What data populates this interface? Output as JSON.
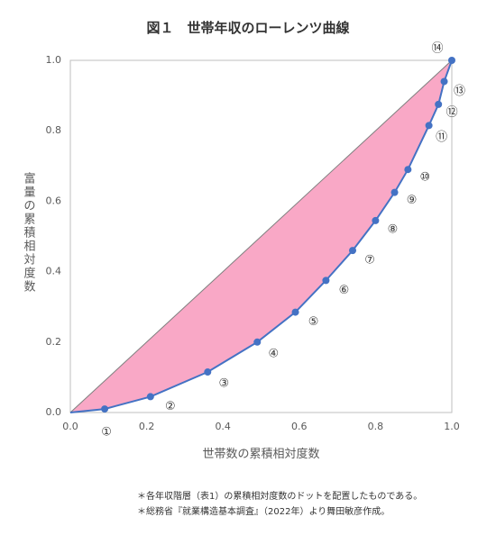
{
  "chart_data": {
    "type": "line",
    "title": "図１　世帯年収のローレンツ曲線",
    "xlabel": "世帯数の累積相対度数",
    "ylabel": "富量の累積相対度数",
    "xlim": [
      0,
      1
    ],
    "ylim": [
      0,
      1
    ],
    "xticks": [
      "0.0",
      "0.2",
      "0.4",
      "0.6",
      "0.8",
      "1.0"
    ],
    "yticks": [
      "0.0",
      "0.2",
      "0.4",
      "0.6",
      "0.8",
      "1.0"
    ],
    "grid": false,
    "series": [
      {
        "x": [
          0,
          0.09,
          0.21,
          0.36,
          0.49,
          0.59,
          0.67,
          0.74,
          0.8,
          0.85,
          0.885,
          0.94,
          0.965,
          0.98,
          1.0
        ],
        "y": [
          0,
          0.01,
          0.045,
          0.115,
          0.2,
          0.285,
          0.375,
          0.46,
          0.545,
          0.625,
          0.69,
          0.815,
          0.875,
          0.94,
          1.0
        ]
      }
    ],
    "equality_line": {
      "x": [
        0,
        1
      ],
      "y": [
        0,
        1
      ]
    },
    "point_labels": [
      "①",
      "②",
      "③",
      "④",
      "⑤",
      "⑥",
      "⑦",
      "⑧",
      "⑨",
      "⑩",
      "⑪",
      "⑫",
      "⑬",
      "⑭"
    ],
    "colors": {
      "line": "#4472c4",
      "fill": "#f9a8c6",
      "equality": "#7f7f7f"
    }
  },
  "notes": [
    "＊各年収階層（表1）の累積相対度数のドットを配置したものである。",
    "＊総務省『就業構造基本調査』（2022年）より舞田敏彦作成。"
  ]
}
